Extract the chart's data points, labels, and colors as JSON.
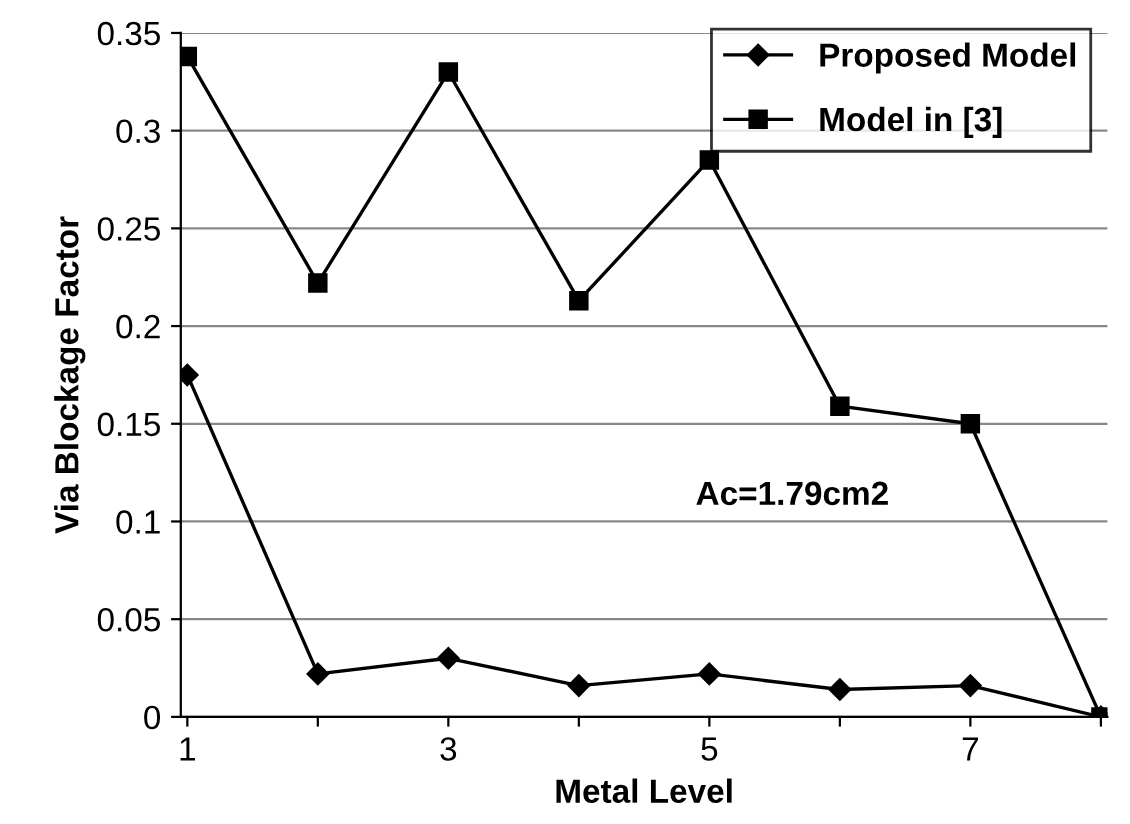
{
  "chart_data": {
    "type": "line",
    "xlabel": "Metal Level",
    "ylabel": "Via Blockage Factor",
    "categories": [
      "1",
      null,
      "3",
      null,
      "5",
      null,
      "7",
      null
    ],
    "series": [
      {
        "name": "Proposed Model",
        "color": "#000000",
        "marker": "diamond",
        "values": [
          0.175,
          0.022,
          0.03,
          0.016,
          0.022,
          0.014,
          0.016,
          0
        ]
      },
      {
        "name": "Model in [3]",
        "color": "#000000",
        "marker": "square",
        "values": [
          0.338,
          0.222,
          0.33,
          0.213,
          0.285,
          0.159,
          0.15,
          0
        ]
      }
    ],
    "ylim": [
      0,
      0.35
    ],
    "yticks": [
      {
        "value": 0,
        "label": "0"
      },
      0.05,
      0.1,
      0.15,
      0.2,
      0.25,
      0.3,
      0.35
    ],
    "grid": "y",
    "legend": "top right",
    "line_style": "solid",
    "annotations": [
      "Ac=1.79cm2"
    ]
  }
}
